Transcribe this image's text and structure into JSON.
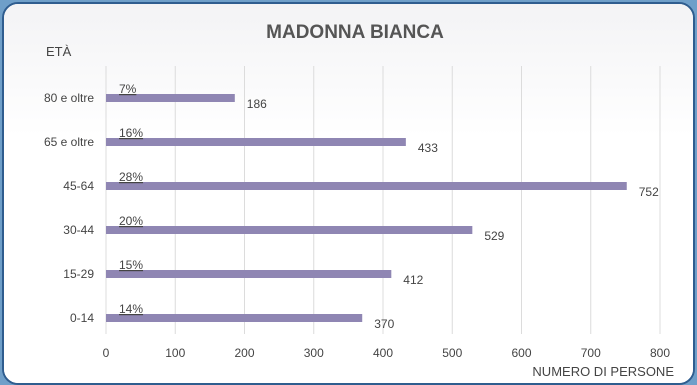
{
  "chart_data": {
    "type": "bar",
    "orientation": "horizontal",
    "title": "MADONNA BIANCA",
    "ylabel": "ETÀ",
    "xlabel": "NUMERO DI PERSONE",
    "categories": [
      "80 e oltre",
      "65 e oltre",
      "45-64",
      "30-44",
      "15-29",
      "0-14"
    ],
    "values": [
      186,
      433,
      752,
      529,
      412,
      370
    ],
    "percent_labels": [
      "7%",
      "16%",
      "28%",
      "20%",
      "15%",
      "14%"
    ],
    "xlim": [
      0,
      800
    ],
    "xticks": [
      0,
      100,
      200,
      300,
      400,
      500,
      600,
      700,
      800
    ],
    "grid": true,
    "bar_color": "#8f86b3",
    "grid_color": "#dcdcdc",
    "text_color": "#444444",
    "title_color": "#555555"
  }
}
